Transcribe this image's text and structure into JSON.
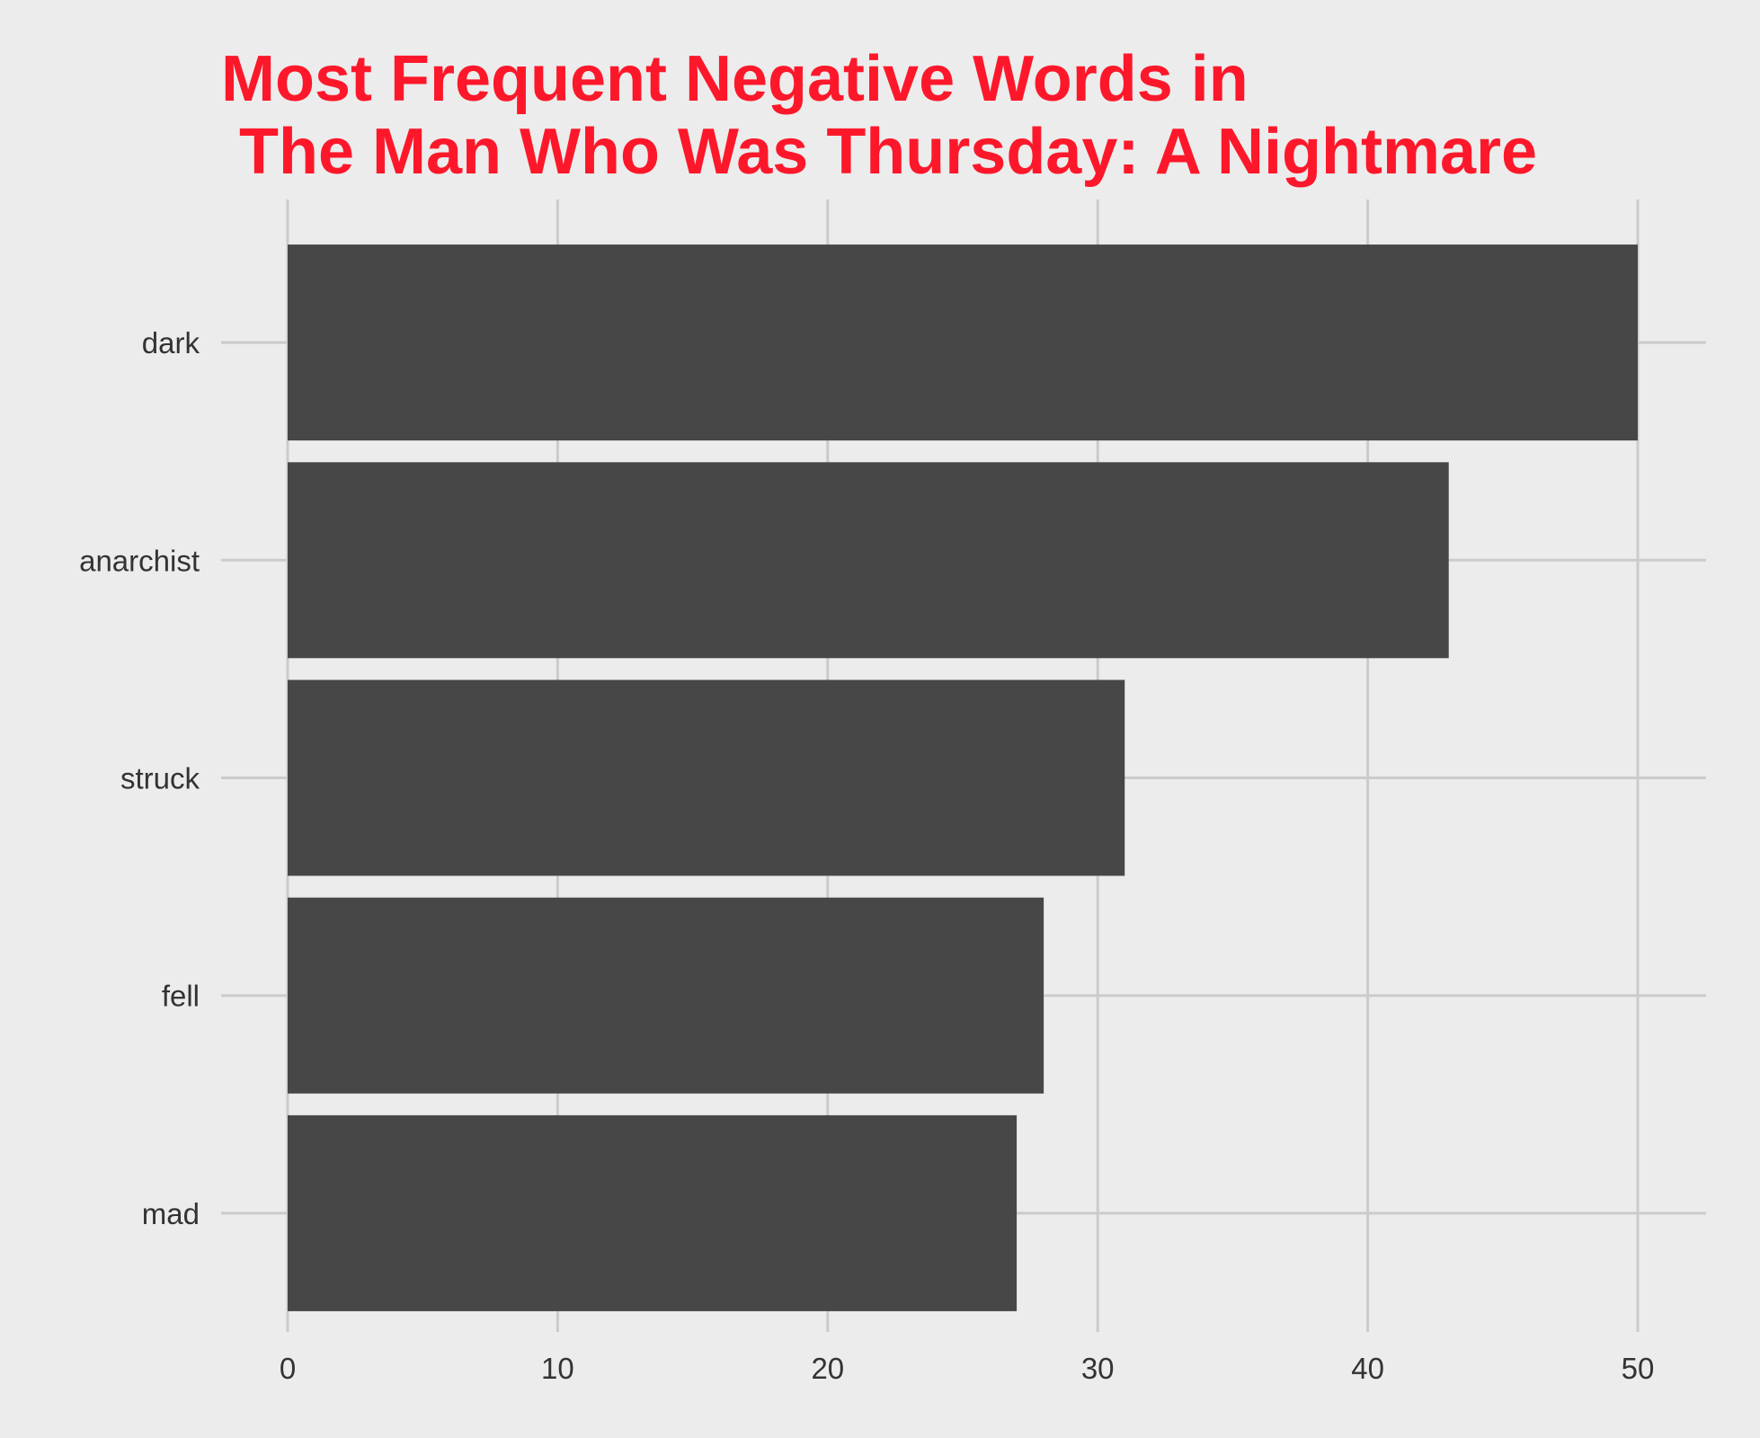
{
  "chart_data": {
    "type": "bar",
    "orientation": "horizontal",
    "title_lines": [
      "Most Frequent Negative Words in",
      " The Man Who Was Thursday: A Nightmare"
    ],
    "categories": [
      "dark",
      "anarchist",
      "struck",
      "fell",
      "mad"
    ],
    "values": [
      50,
      43,
      31,
      28,
      27
    ],
    "xlabel": "",
    "ylabel": "",
    "xlim": [
      0,
      52.5
    ],
    "x_ticks": [
      0,
      10,
      20,
      30,
      40,
      50
    ],
    "grid": true,
    "legend": "none",
    "colors": {
      "background": "#ececec",
      "bar": "#474747",
      "grid": "#cbcbcb",
      "title": "#fc182a",
      "tick_text": "#333333"
    }
  }
}
